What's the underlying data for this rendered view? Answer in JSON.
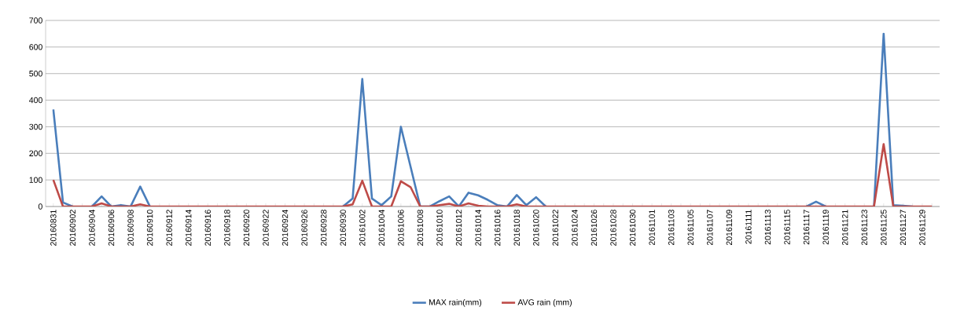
{
  "chart_data": {
    "type": "line",
    "categories": [
      "20160831",
      null,
      "20160902",
      null,
      "20160904",
      null,
      "20160906",
      null,
      "20160908",
      null,
      "20160910",
      null,
      "20160912",
      null,
      "20160914",
      null,
      "20160916",
      null,
      "20160918",
      null,
      "20160920",
      null,
      "20160922",
      null,
      "20160924",
      null,
      "20160926",
      null,
      "20160928",
      null,
      "20160930",
      null,
      "20161002",
      null,
      "20161004",
      null,
      "20161006",
      null,
      "20161008",
      null,
      "20161010",
      null,
      "20161012",
      null,
      "20161014",
      null,
      "20161016",
      null,
      "20161018",
      null,
      "20161020",
      null,
      "20161022",
      null,
      "20161024",
      null,
      "20161026",
      null,
      "20161028",
      null,
      "20161030",
      null,
      "20161101",
      null,
      "20161103",
      null,
      "20161105",
      null,
      "20161107",
      null,
      "20161109",
      null,
      "20161111",
      null,
      "20161113",
      null,
      "20161115",
      null,
      "20161117",
      null,
      "20161119",
      null,
      "20161121",
      null,
      "20161123",
      null,
      "20161125",
      null,
      "20161127",
      null,
      "20161129",
      null
    ],
    "series": [
      {
        "name": "MAX rain(mm)",
        "color": "#4a7ebb",
        "values": [
          365,
          15,
          0,
          null,
          0,
          38,
          0,
          5,
          0,
          75,
          0,
          null,
          null,
          null,
          null,
          null,
          null,
          null,
          null,
          null,
          null,
          null,
          null,
          null,
          null,
          null,
          null,
          null,
          null,
          null,
          0,
          30,
          480,
          30,
          5,
          38,
          300,
          150,
          0,
          0,
          20,
          38,
          0,
          52,
          42,
          25,
          5,
          0,
          43,
          5,
          35,
          0,
          null,
          null,
          null,
          null,
          null,
          null,
          null,
          null,
          null,
          null,
          null,
          null,
          null,
          null,
          null,
          null,
          null,
          null,
          null,
          null,
          null,
          null,
          null,
          null,
          null,
          null,
          0,
          18,
          0,
          null,
          null,
          null,
          null,
          0,
          650,
          5,
          3,
          0,
          null,
          null
        ]
      },
      {
        "name": "AVG rain (mm)",
        "color": "#be4b48",
        "values": [
          100,
          0,
          0,
          0,
          0,
          12,
          0,
          0,
          0,
          8,
          0,
          0,
          0,
          0,
          0,
          0,
          0,
          0,
          0,
          0,
          0,
          0,
          0,
          0,
          0,
          0,
          0,
          0,
          0,
          0,
          0,
          8,
          97,
          0,
          0,
          0,
          95,
          73,
          0,
          0,
          5,
          10,
          0,
          12,
          3,
          0,
          0,
          0,
          8,
          0,
          0,
          0,
          0,
          0,
          0,
          0,
          0,
          0,
          0,
          0,
          0,
          0,
          0,
          0,
          0,
          0,
          0,
          0,
          0,
          0,
          0,
          0,
          0,
          0,
          0,
          0,
          0,
          0,
          0,
          0,
          0,
          0,
          0,
          0,
          0,
          0,
          235,
          0,
          0,
          0,
          0,
          0
        ]
      }
    ],
    "ylim": [
      0,
      700
    ],
    "yticks": [
      0,
      100,
      200,
      300,
      400,
      500,
      600,
      700
    ],
    "grid": "y",
    "legend": "bottom",
    "marker": "none",
    "line_style": "solid"
  }
}
